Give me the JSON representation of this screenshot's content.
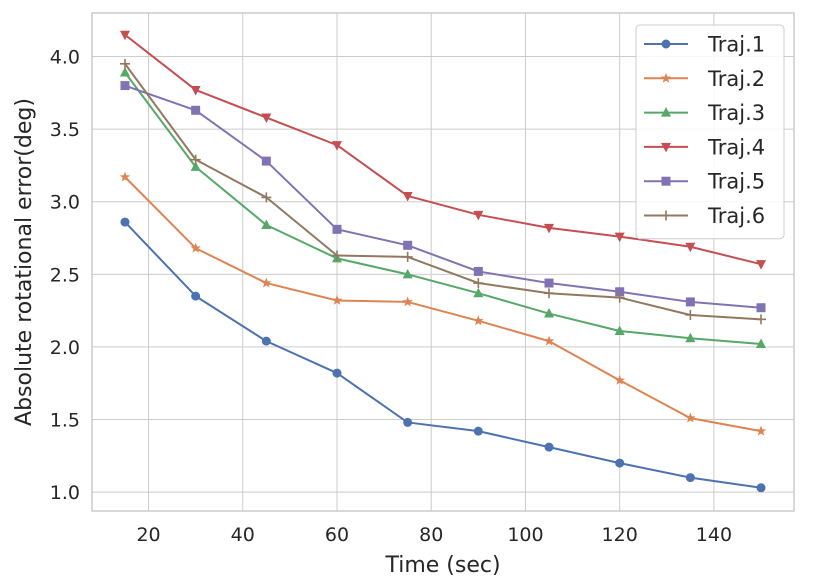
{
  "chart_data": {
    "type": "line",
    "title": "",
    "xlabel": "Time (sec)",
    "ylabel": "Absolute rotational error(deg)",
    "xlim": [
      8,
      157
    ],
    "ylim": [
      0.87,
      4.3
    ],
    "xticks": [
      20,
      40,
      60,
      80,
      100,
      120,
      140
    ],
    "yticks": [
      1.0,
      1.5,
      2.0,
      2.5,
      3.0,
      3.5,
      4.0
    ],
    "xtick_labels": [
      "20",
      "40",
      "60",
      "80",
      "100",
      "120",
      "140"
    ],
    "ytick_labels": [
      "1.0",
      "1.5",
      "2.0",
      "2.5",
      "3.0",
      "3.5",
      "4.0"
    ],
    "grid": true,
    "legend_position": "top-right",
    "x": [
      15,
      30,
      45,
      60,
      75,
      90,
      105,
      120,
      135,
      150
    ],
    "series": [
      {
        "name": "Traj.1",
        "color": "#4c72b0",
        "marker": "circle",
        "values": [
          2.86,
          2.35,
          2.04,
          1.82,
          1.48,
          1.42,
          1.31,
          1.2,
          1.1,
          1.03
        ]
      },
      {
        "name": "Traj.2",
        "color": "#dd8452",
        "marker": "star",
        "values": [
          3.17,
          2.68,
          2.44,
          2.32,
          2.31,
          2.18,
          2.04,
          1.77,
          1.51,
          1.42
        ]
      },
      {
        "name": "Traj.3",
        "color": "#55a868",
        "marker": "triangle-up",
        "values": [
          3.89,
          3.24,
          2.84,
          2.61,
          2.5,
          2.37,
          2.23,
          2.11,
          2.06,
          2.02
        ]
      },
      {
        "name": "Traj.4",
        "color": "#c44e52",
        "marker": "triangle-down",
        "values": [
          4.15,
          3.77,
          3.58,
          3.39,
          3.04,
          2.91,
          2.82,
          2.76,
          2.69,
          2.57
        ]
      },
      {
        "name": "Traj.5",
        "color": "#8172b3",
        "marker": "square",
        "values": [
          3.8,
          3.63,
          3.28,
          2.81,
          2.7,
          2.52,
          2.44,
          2.38,
          2.31,
          2.27
        ]
      },
      {
        "name": "Traj.6",
        "color": "#937860",
        "marker": "plus",
        "values": [
          3.95,
          3.29,
          3.03,
          2.63,
          2.62,
          2.44,
          2.37,
          2.34,
          2.22,
          2.19
        ]
      }
    ]
  }
}
